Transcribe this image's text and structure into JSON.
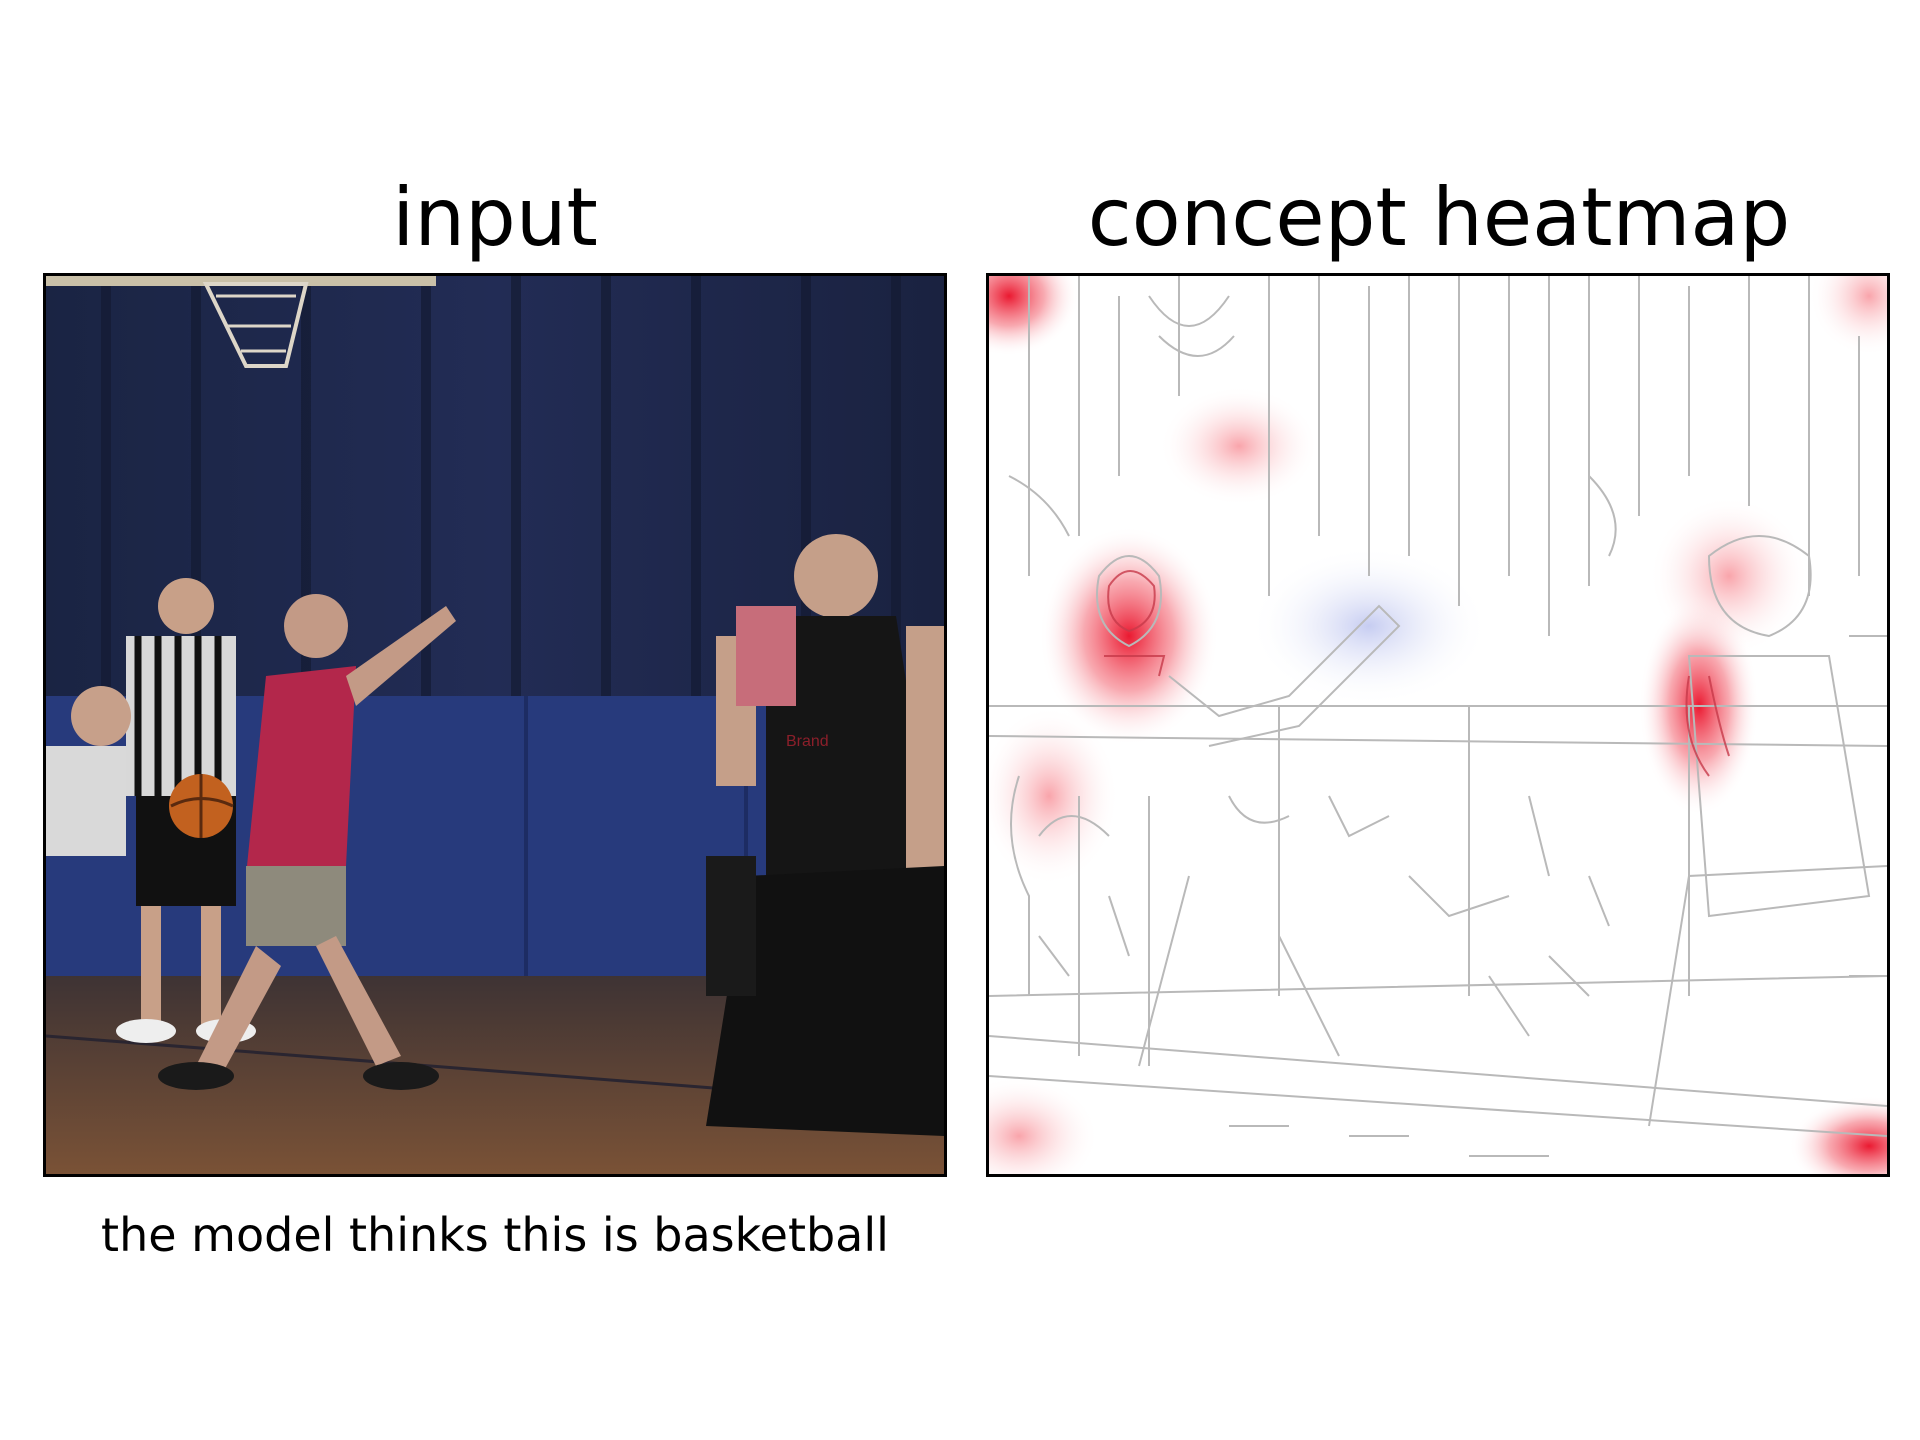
{
  "panels": {
    "left_title": "input",
    "right_title": "concept heatmap"
  },
  "caption": "the model thinks this is basketball",
  "colors": {
    "heat_positive": "#e8001a",
    "heat_negative": "#5d6fd8",
    "edge": "#b9b9b9",
    "court_curtain": "#1d2747",
    "floor": "#6b4a35"
  },
  "icons": {
    "input_photo": "basketball-scene-photo",
    "heatmap": "edge-overlay-heatmap"
  }
}
